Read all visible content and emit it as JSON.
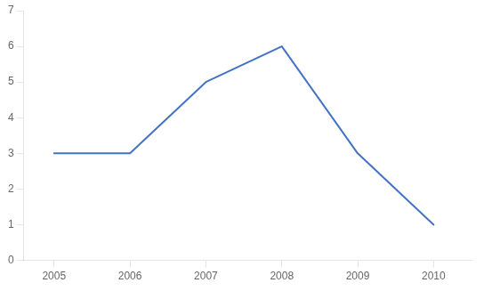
{
  "chart_data": {
    "type": "line",
    "x": [
      2005,
      2006,
      2007,
      2008,
      2009,
      2010
    ],
    "values": [
      3,
      3,
      5,
      6,
      3,
      1
    ],
    "color": "#4472C4",
    "xlim": [
      2004.6,
      2010.5
    ],
    "xticks": [
      2005,
      2006,
      2007,
      2008,
      2009,
      2010
    ],
    "ylim": [
      0,
      7
    ],
    "yticks": [
      0,
      1,
      2,
      3,
      4,
      5,
      6,
      7
    ],
    "grid": false,
    "marker": "none"
  }
}
